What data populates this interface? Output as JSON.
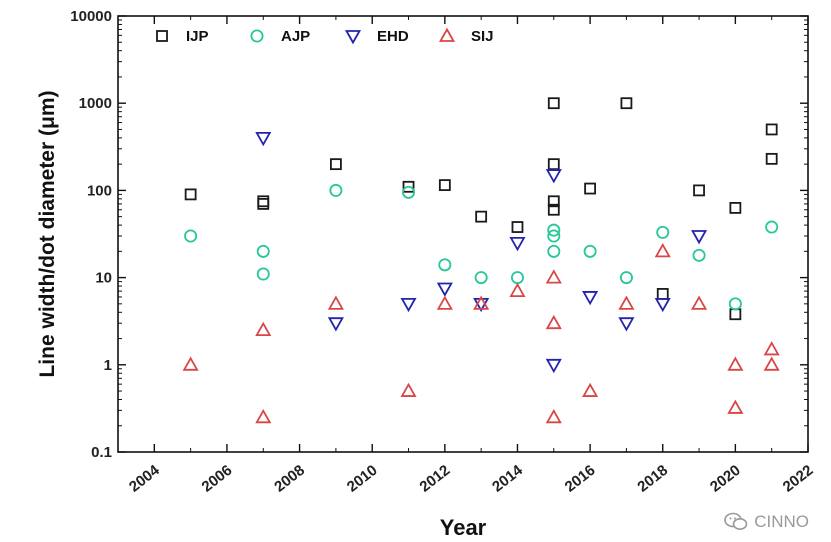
{
  "chart_data": {
    "type": "scatter",
    "title": "",
    "xlabel": "Year",
    "ylabel": "Line width/dot diameter (μm)",
    "xlim": [
      2003,
      2022
    ],
    "ylim": [
      0.1,
      10000
    ],
    "yscale": "log",
    "x_ticks": [
      2004,
      2006,
      2008,
      2010,
      2012,
      2014,
      2016,
      2018,
      2020,
      2022
    ],
    "y_ticks": [
      0.1,
      1,
      10,
      100,
      1000,
      10000
    ],
    "y_tick_labels": [
      "0.1",
      "1",
      "10",
      "100",
      "1000",
      "10000"
    ],
    "grid": false,
    "legend_position": "top",
    "series": [
      {
        "name": "IJP",
        "marker": "square",
        "color": "#1a1a1a",
        "points": [
          [
            2005,
            90
          ],
          [
            2007,
            70
          ],
          [
            2007,
            75
          ],
          [
            2009,
            200
          ],
          [
            2011,
            110
          ],
          [
            2012,
            115
          ],
          [
            2013,
            50
          ],
          [
            2014,
            38
          ],
          [
            2015,
            1000
          ],
          [
            2015,
            200
          ],
          [
            2015,
            75
          ],
          [
            2015,
            60
          ],
          [
            2016,
            105
          ],
          [
            2017,
            1000
          ],
          [
            2018,
            6.5
          ],
          [
            2019,
            100
          ],
          [
            2020,
            63
          ],
          [
            2020,
            3.8
          ],
          [
            2021,
            500
          ],
          [
            2021,
            230
          ]
        ]
      },
      {
        "name": "AJP",
        "marker": "circle",
        "color": "#27c79a",
        "points": [
          [
            2005,
            30
          ],
          [
            2007,
            20
          ],
          [
            2007,
            11
          ],
          [
            2009,
            100
          ],
          [
            2011,
            95
          ],
          [
            2012,
            14
          ],
          [
            2013,
            10
          ],
          [
            2014,
            10
          ],
          [
            2015,
            35
          ],
          [
            2015,
            30
          ],
          [
            2015,
            20
          ],
          [
            2016,
            20
          ],
          [
            2017,
            10
          ],
          [
            2018,
            33
          ],
          [
            2019,
            18
          ],
          [
            2020,
            5
          ],
          [
            2021,
            38
          ]
        ]
      },
      {
        "name": "EHD",
        "marker": "triangle-down",
        "color": "#2323b0",
        "points": [
          [
            2007,
            400
          ],
          [
            2009,
            3
          ],
          [
            2011,
            5
          ],
          [
            2012,
            7.5
          ],
          [
            2013,
            5
          ],
          [
            2014,
            25
          ],
          [
            2015,
            150
          ],
          [
            2015,
            1
          ],
          [
            2016,
            6
          ],
          [
            2017,
            3
          ],
          [
            2018,
            5
          ],
          [
            2019,
            30
          ]
        ]
      },
      {
        "name": "SIJ",
        "marker": "triangle-up",
        "color": "#d94646",
        "points": [
          [
            2005,
            1
          ],
          [
            2007,
            2.5
          ],
          [
            2007,
            0.25
          ],
          [
            2009,
            5
          ],
          [
            2011,
            0.5
          ],
          [
            2012,
            5
          ],
          [
            2013,
            5
          ],
          [
            2014,
            7
          ],
          [
            2015,
            10
          ],
          [
            2015,
            3
          ],
          [
            2015,
            0.25
          ],
          [
            2016,
            0.5
          ],
          [
            2017,
            5
          ],
          [
            2018,
            20
          ],
          [
            2019,
            5
          ],
          [
            2020,
            1
          ],
          [
            2020,
            0.32
          ],
          [
            2021,
            1.5
          ],
          [
            2021,
            1
          ]
        ]
      }
    ]
  },
  "watermark": {
    "text": "CINNO",
    "icon": "wechat-icon"
  }
}
